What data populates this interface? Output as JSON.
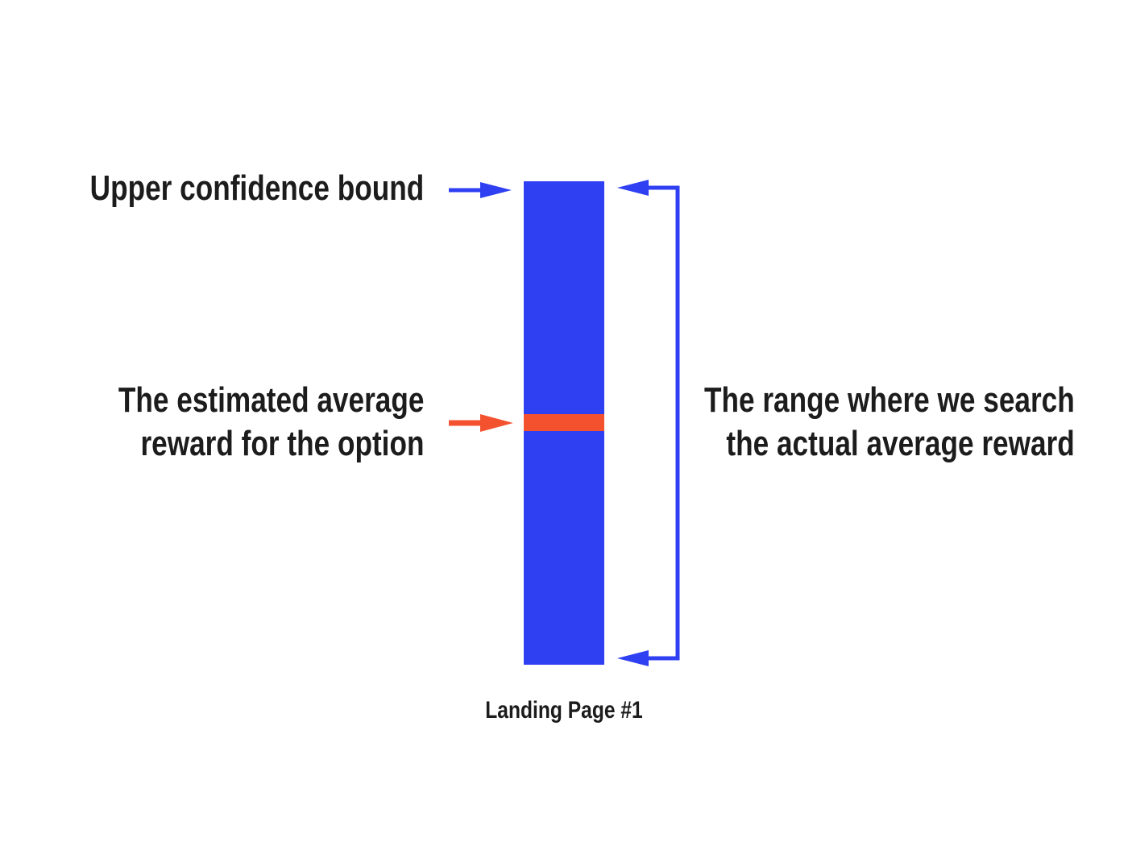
{
  "colors": {
    "bar": "#2f3ff2",
    "estimate": "#f4522f",
    "arrow_blue": "#2f3ff2",
    "arrow_orange": "#f4522f",
    "text": "#1c1c1c"
  },
  "labels": {
    "upper_bound": "Upper confidence bound",
    "estimate_line1": "The estimated average",
    "estimate_line2": "reward for the option",
    "range_line1": "The range where we search",
    "range_line2": "the actual average reward",
    "bar_caption": "Landing Page #1"
  }
}
